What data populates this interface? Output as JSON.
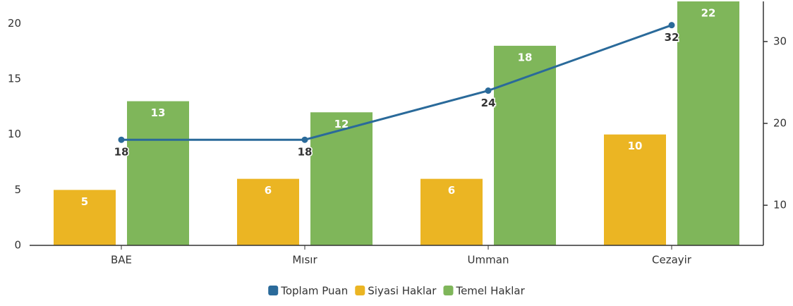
{
  "chart_data": {
    "type": "bar",
    "categories": [
      "BAE",
      "Mısır",
      "Umman",
      "Cezayir"
    ],
    "series": [
      {
        "name": "Toplam Puan",
        "type": "line",
        "axis": "y2",
        "color": "#2a6a9a",
        "values": [
          18,
          18,
          24,
          32
        ]
      },
      {
        "name": "Siyasi Haklar",
        "color": "#ebb523",
        "values": [
          5,
          6,
          6,
          10
        ]
      },
      {
        "name": "Temel Haklar",
        "color": "#7fb65a",
        "values": [
          13,
          12,
          18,
          22
        ]
      }
    ],
    "ylim": [
      0,
      22
    ],
    "yticks": [
      0,
      5,
      10,
      15,
      20
    ],
    "y2lim": [
      5.1,
      34.9
    ],
    "y2ticks": [
      10,
      20,
      30
    ],
    "legend": "bottom"
  }
}
